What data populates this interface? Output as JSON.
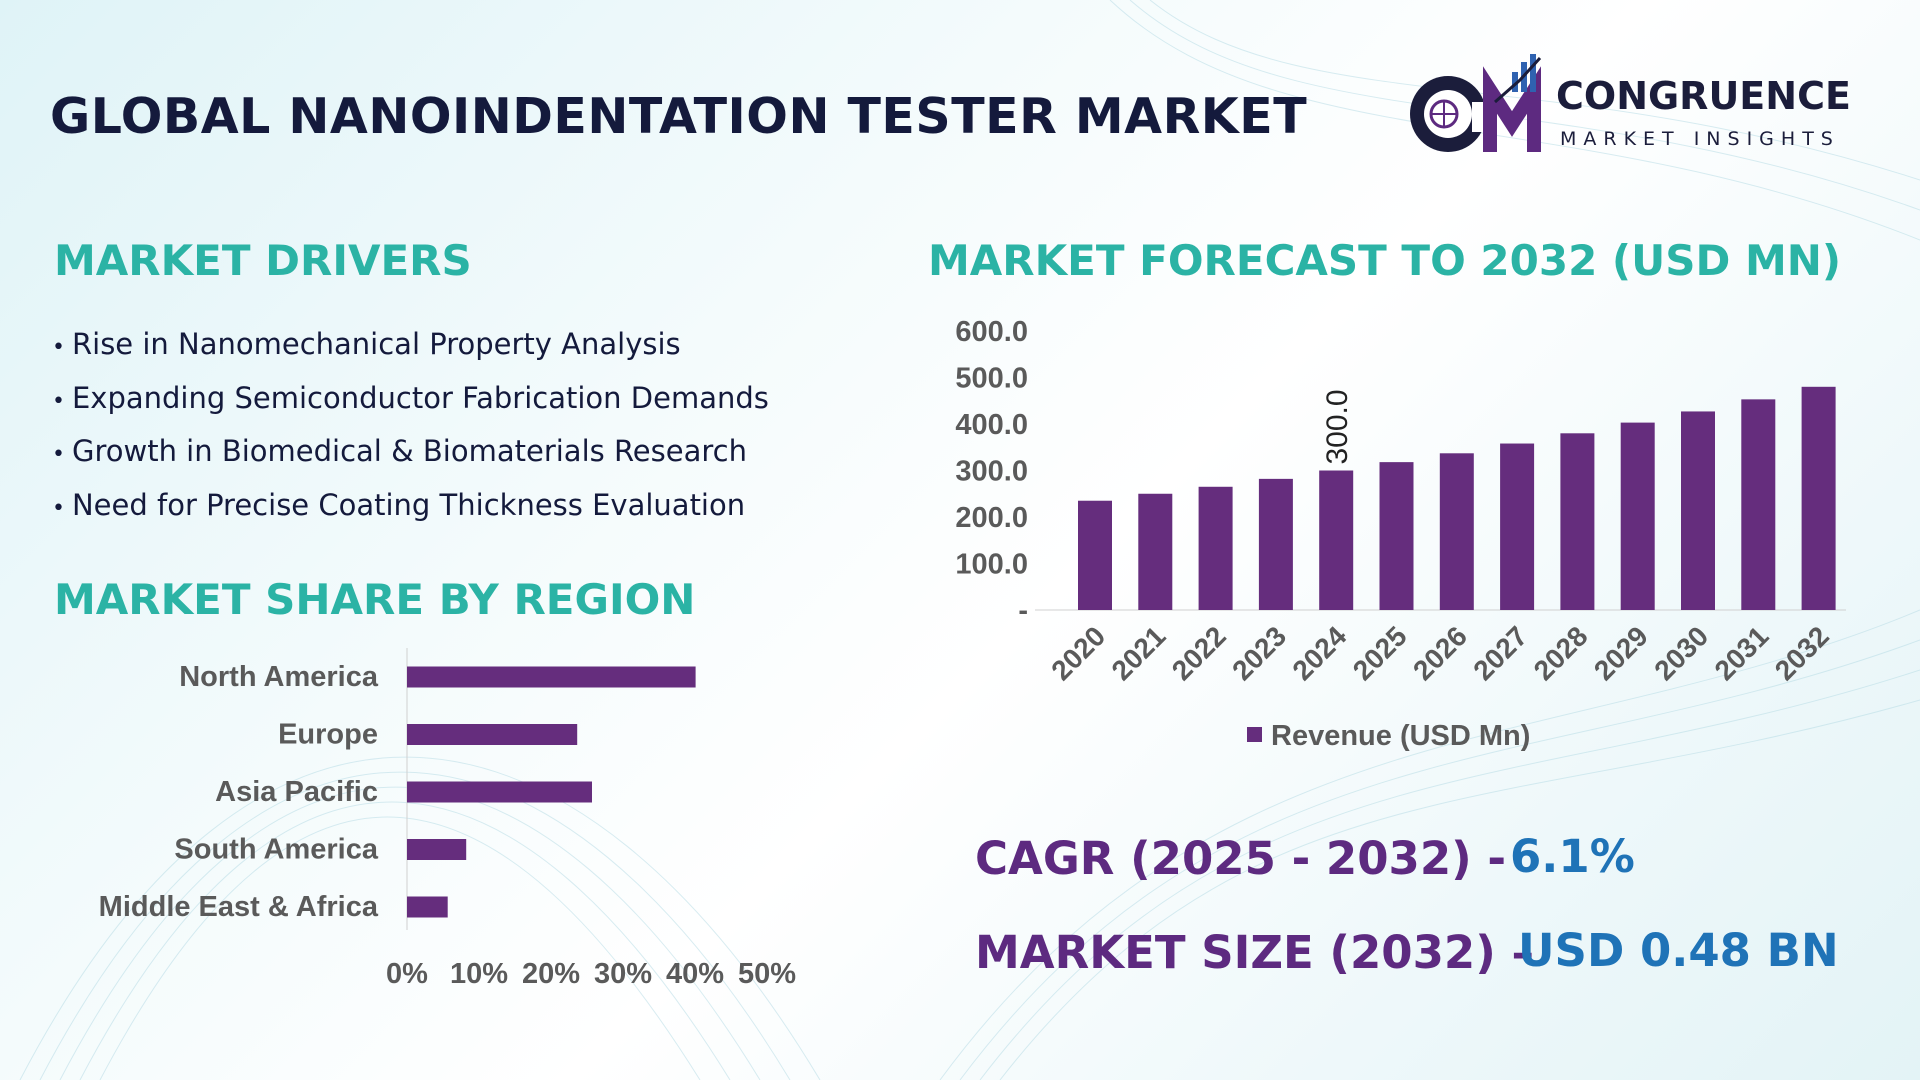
{
  "header": {
    "title": "GLOBAL NANOINDENTATION TESTER MARKET",
    "logo_name": "CONGRUENCE",
    "logo_subtitle": "MARKET INSIGHTS"
  },
  "drivers": {
    "title": "MARKET DRIVERS",
    "items": [
      "Rise in Nanomechanical Property Analysis",
      "Expanding Semiconductor Fabrication Demands",
      "Growth in Biomedical & Biomaterials Research",
      "Need for Precise Coating Thickness Evaluation"
    ]
  },
  "region": {
    "title": "MARKET SHARE BY REGION"
  },
  "forecast": {
    "title": "MARKET FORECAST TO 2032 (USD MN)"
  },
  "stats": {
    "cagr_label": "CAGR (2025 - 2032) -",
    "cagr_value": "6.1%",
    "size_label": "MARKET SIZE (2032) –",
    "size_value": "USD 0.48 BN"
  },
  "colors": {
    "bar": "#652d7d",
    "section_title": "#2bb3a5",
    "title": "#141a3c",
    "stat_label": "#5d2a80",
    "stat_value": "#1f73b7"
  },
  "chart_data": [
    {
      "type": "bar",
      "orientation": "horizontal",
      "categories": [
        "North America",
        "Europe",
        "Asia Pacific",
        "South America",
        "Middle East & Africa"
      ],
      "values": [
        39,
        23,
        25,
        8,
        5.5
      ],
      "xlim": [
        0,
        50
      ],
      "tick_labels": [
        "0%",
        "10%",
        "20%",
        "30%",
        "40%",
        "50%"
      ],
      "grid": false,
      "legend": "none"
    },
    {
      "type": "bar",
      "categories": [
        "2020",
        "2021",
        "2022",
        "2023",
        "2024",
        "2025",
        "2026",
        "2027",
        "2028",
        "2029",
        "2030",
        "2031",
        "2032"
      ],
      "series": [
        {
          "name": "Revenue (USD Mn)",
          "values": [
            235,
            250,
            265,
            282,
            300,
            318,
            337,
            358,
            380,
            403,
            427,
            453,
            480
          ]
        }
      ],
      "ylim": [
        0,
        600
      ],
      "tick_labels": [
        "-",
        "100.0",
        "200.0",
        "300.0",
        "400.0",
        "500.0",
        "600.0"
      ],
      "data_labels": [
        {
          "category": "2024",
          "text": "300.0"
        }
      ],
      "grid": false,
      "legend": "bottom"
    }
  ]
}
